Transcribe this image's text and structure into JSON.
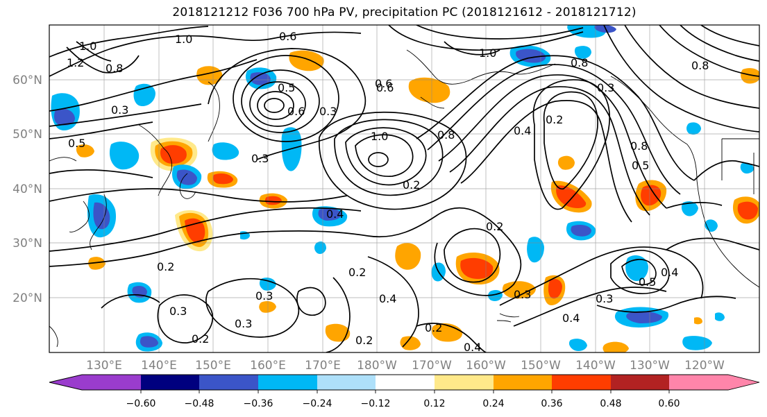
{
  "figure": {
    "title": "2018121212 F036 700 hPa PV, precipitation PC (2018121612 - 2018121712)"
  },
  "axes": {
    "lat_labels": [
      "60°N",
      "50°N",
      "40°N",
      "30°N",
      "20°N"
    ],
    "lon_labels": [
      "130°E",
      "140°E",
      "150°E",
      "160°E",
      "170°E",
      "180°W",
      "170°W",
      "160°W",
      "150°W",
      "140°W",
      "130°W",
      "120°W"
    ]
  },
  "contour_labels": [
    {
      "text": "1.0"
    },
    {
      "text": "0.6"
    },
    {
      "text": "1.0"
    },
    {
      "text": "1.2"
    },
    {
      "text": "0.8"
    },
    {
      "text": "0.5"
    },
    {
      "text": "0.6"
    },
    {
      "text": "0.3"
    },
    {
      "text": "0.6"
    },
    {
      "text": "0.3"
    },
    {
      "text": "1.0"
    },
    {
      "text": "0.8"
    },
    {
      "text": "0.3"
    },
    {
      "text": "0.5"
    },
    {
      "text": "0.4"
    },
    {
      "text": "0.2"
    },
    {
      "text": "0.2"
    },
    {
      "text": "0.2"
    },
    {
      "text": "0.3"
    },
    {
      "text": "0.3"
    },
    {
      "text": "0.3"
    },
    {
      "text": "0.2"
    },
    {
      "text": "0.4"
    },
    {
      "text": "0.3"
    },
    {
      "text": "0.2"
    },
    {
      "text": "0.4"
    },
    {
      "text": "0.2"
    },
    {
      "text": "0.4"
    },
    {
      "text": "0.4"
    },
    {
      "text": "0.2"
    },
    {
      "text": "0.2"
    },
    {
      "text": "0.5"
    },
    {
      "text": "0.4"
    },
    {
      "text": "0.6"
    },
    {
      "text": "0.8"
    },
    {
      "text": "0.8"
    },
    {
      "text": "0.5"
    },
    {
      "text": "0.8"
    },
    {
      "text": "0.3"
    },
    {
      "text": "0.3"
    },
    {
      "text": "1.0"
    }
  ],
  "colorbar": {
    "ticks": [
      "−0.60",
      "−0.48",
      "−0.36",
      "−0.24",
      "−0.12",
      "0.12",
      "0.24",
      "0.36",
      "0.48",
      "0.60"
    ],
    "colors": [
      "#9a3ccd",
      "#00007f",
      "#3b55c8",
      "#00b8f5",
      "#aee0fa",
      "#ffffff",
      "#ffe98a",
      "#ffa500",
      "#ff3d00",
      "#b22222",
      "#ff85aa"
    ]
  },
  "colors": {
    "pos_light": "#ffe98a",
    "pos_mid": "#ffa500",
    "pos_strong": "#ff3d00",
    "neg_light": "#aee0fa",
    "neg_mid": "#00b8f5",
    "neg_strong": "#3b55c8",
    "neg_very": "#00007f"
  }
}
